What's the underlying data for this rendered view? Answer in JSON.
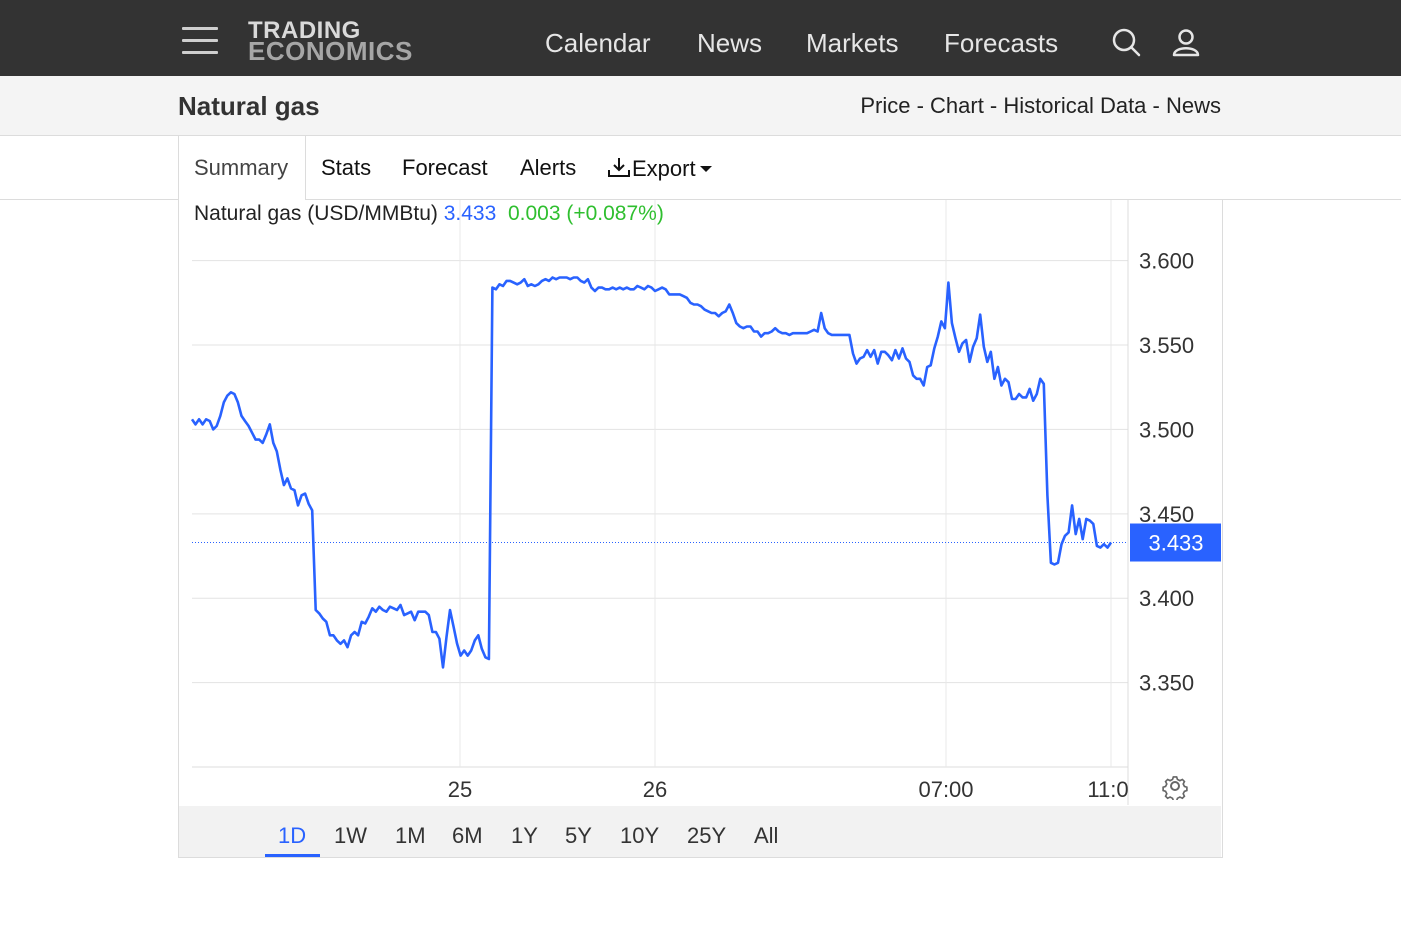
{
  "header": {
    "logo_line1": "TRADING",
    "logo_line2": "ECONOMICS",
    "nav": [
      "Calendar",
      "News",
      "Markets",
      "Forecasts"
    ],
    "icons": [
      "menu-icon",
      "search-icon",
      "user-icon"
    ]
  },
  "subheader": {
    "title": "Natural gas",
    "links": [
      "Price",
      "Chart",
      "Historical Data",
      "News"
    ],
    "separator": " - "
  },
  "tabs": {
    "items": [
      "Summary",
      "Stats",
      "Forecast",
      "Alerts",
      "Export"
    ],
    "active": "Summary"
  },
  "legend": {
    "name": "Natural gas (USD/MMBtu)",
    "price": "3.433",
    "change": "0.003 (+0.087%)"
  },
  "ranges": {
    "items": [
      "1D",
      "1W",
      "1M",
      "6M",
      "1Y",
      "5Y",
      "10Y",
      "25Y",
      "All"
    ],
    "active": "1D"
  },
  "colors": {
    "line": "#2962ff",
    "positive": "#2fbf2f",
    "topbar": "#333333"
  },
  "chart_data": {
    "type": "line",
    "x_tick_labels": [
      "25",
      "26",
      "07:00",
      "11:0"
    ],
    "y_tick_labels": [
      "3.600",
      "3.550",
      "3.500",
      "3.450",
      "3.400",
      "3.350"
    ],
    "ylim": [
      3.3,
      3.63
    ],
    "grid": true,
    "last_value_label": "3.433",
    "series": [
      {
        "values": [
          3.506,
          3.503,
          3.506,
          3.503,
          3.506,
          3.505,
          3.5,
          3.502,
          3.508,
          3.516,
          3.52,
          3.522,
          3.521,
          3.516,
          3.508,
          3.505,
          3.502,
          3.498,
          3.494,
          3.494,
          3.492,
          3.497,
          3.503,
          3.492,
          3.487,
          3.476,
          3.467,
          3.471,
          3.465,
          3.464,
          3.455,
          3.461,
          3.462,
          3.456,
          3.452,
          3.393,
          3.391,
          3.388,
          3.386,
          3.378,
          3.378,
          3.375,
          3.373,
          3.375,
          3.371,
          3.378,
          3.38,
          3.378,
          3.386,
          3.385,
          3.389,
          3.394,
          3.392,
          3.395,
          3.393,
          3.392,
          3.395,
          3.394,
          3.393,
          3.396,
          3.39,
          3.391,
          3.392,
          3.387,
          3.392,
          3.392,
          3.392,
          3.39,
          3.38,
          3.38,
          3.376,
          3.359,
          3.377,
          3.393,
          3.383,
          3.373,
          3.366,
          3.369,
          3.366,
          3.369,
          3.375,
          3.378,
          3.37,
          3.365,
          3.364,
          3.584,
          3.583,
          3.586,
          3.585,
          3.588,
          3.588,
          3.587,
          3.586,
          3.587,
          3.589,
          3.585,
          3.586,
          3.585,
          3.586,
          3.588,
          3.589,
          3.588,
          3.59,
          3.589,
          3.59,
          3.59,
          3.59,
          3.589,
          3.59,
          3.59,
          3.588,
          3.587,
          3.589,
          3.584,
          3.582,
          3.584,
          3.584,
          3.583,
          3.583,
          3.584,
          3.583,
          3.584,
          3.583,
          3.584,
          3.583,
          3.583,
          3.585,
          3.584,
          3.583,
          3.585,
          3.584,
          3.582,
          3.583,
          3.584,
          3.583,
          3.58,
          3.58,
          3.58,
          3.58,
          3.579,
          3.578,
          3.575,
          3.574,
          3.574,
          3.573,
          3.571,
          3.57,
          3.569,
          3.569,
          3.567,
          3.569,
          3.57,
          3.574,
          3.569,
          3.563,
          3.561,
          3.56,
          3.561,
          3.561,
          3.558,
          3.558,
          3.555,
          3.557,
          3.557,
          3.558,
          3.56,
          3.558,
          3.557,
          3.557,
          3.556,
          3.557,
          3.557,
          3.557,
          3.557,
          3.557,
          3.558,
          3.559,
          3.558,
          3.569,
          3.56,
          3.557,
          3.556,
          3.556,
          3.556,
          3.556,
          3.556,
          3.556,
          3.545,
          3.539,
          3.542,
          3.543,
          3.547,
          3.543,
          3.547,
          3.539,
          3.546,
          3.546,
          3.544,
          3.541,
          3.547,
          3.542,
          3.548,
          3.542,
          3.54,
          3.532,
          3.53,
          3.53,
          3.526,
          3.537,
          3.538,
          3.548,
          3.555,
          3.564,
          3.56,
          3.587,
          3.563,
          3.554,
          3.546,
          3.551,
          3.553,
          3.54,
          3.549,
          3.554,
          3.568,
          3.549,
          3.54,
          3.546,
          3.53,
          3.537,
          3.526,
          3.53,
          3.528,
          3.518,
          3.518,
          3.521,
          3.519,
          3.519,
          3.524,
          3.517,
          3.521,
          3.53,
          3.527,
          3.461,
          3.421,
          3.42,
          3.421,
          3.432,
          3.437,
          3.439,
          3.455,
          3.438,
          3.447,
          3.435,
          3.447,
          3.446,
          3.444,
          3.431,
          3.43,
          3.432,
          3.43,
          3.433
        ]
      }
    ]
  }
}
